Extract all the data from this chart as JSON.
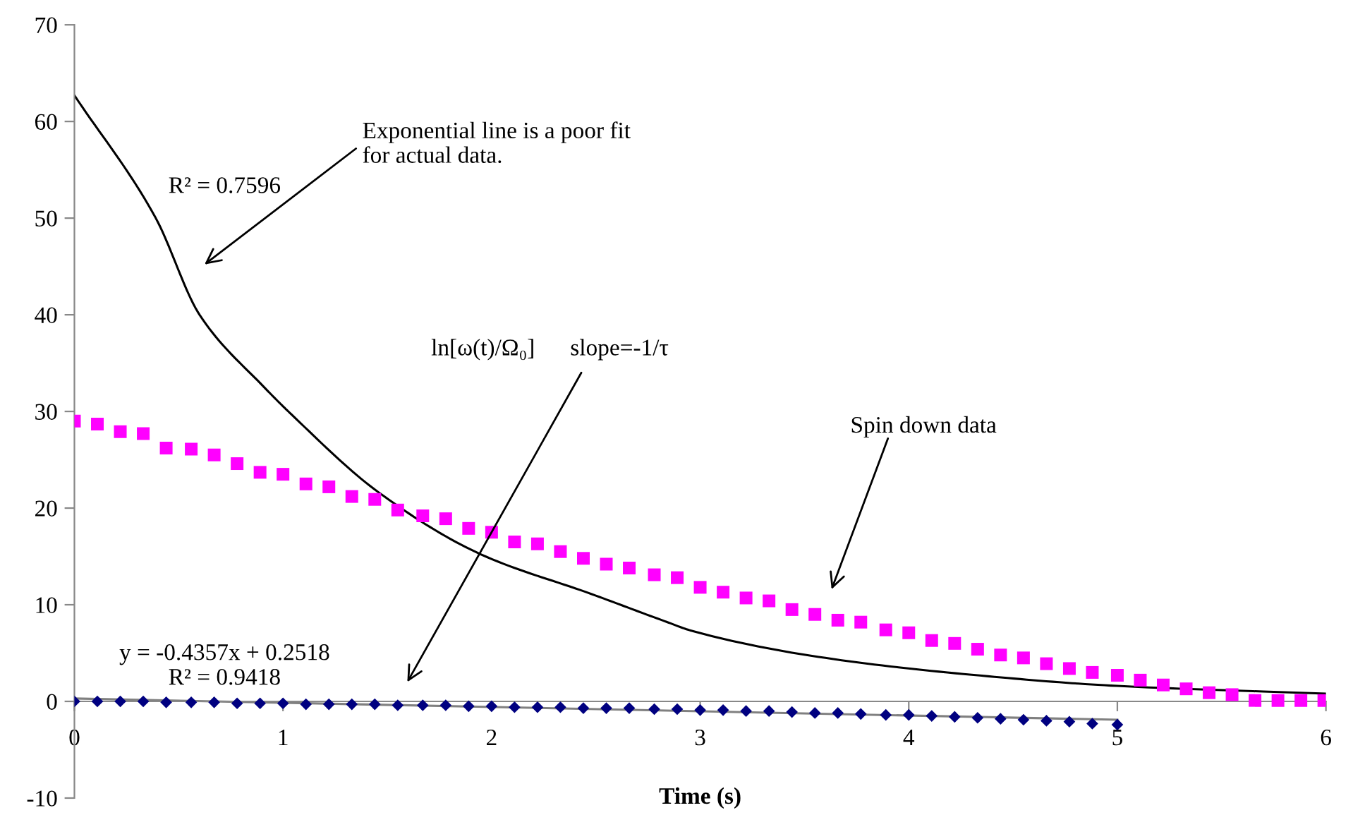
{
  "chart_data": {
    "type": "scatter",
    "xlabel": "Time (s)",
    "xlim": [
      0,
      6
    ],
    "xticks": [
      0,
      1,
      2,
      3,
      4,
      5,
      6
    ],
    "ylim": [
      -10,
      70
    ],
    "yticks": [
      -10,
      0,
      10,
      20,
      30,
      40,
      50,
      60,
      70
    ],
    "grid": false,
    "legend": false,
    "series": [
      {
        "type": "line",
        "color": "#000000",
        "marker": "none",
        "x": [
          0,
          0.39,
          0.6,
          0.91,
          1.04,
          1.46,
          1.95,
          2.48,
          2.83,
          2.96,
          3.6,
          4.38,
          5.0,
          6.0
        ],
        "values": [
          62.7,
          50,
          40,
          32.5,
          29.7,
          21.6,
          15.2,
          11.1,
          8.3,
          7.3,
          4.5,
          2.6,
          1.6,
          0.8
        ]
      },
      {
        "color": "#ff00ff",
        "marker": "square",
        "x": [
          0,
          0.11,
          0.22,
          0.33,
          0.44,
          0.56,
          0.67,
          0.78,
          0.89,
          1.0,
          1.11,
          1.22,
          1.33,
          1.44,
          1.55,
          1.67,
          1.78,
          1.89,
          2.0,
          2.11,
          2.22,
          2.33,
          2.44,
          2.55,
          2.66,
          2.78,
          2.89,
          3.0,
          3.11,
          3.22,
          3.33,
          3.44,
          3.55,
          3.66,
          3.77,
          3.89,
          4.0,
          4.11,
          4.22,
          4.33,
          4.44,
          4.55,
          4.66,
          4.77,
          4.88,
          5.0,
          5.11,
          5.22,
          5.33,
          5.44,
          5.55,
          5.66,
          5.77,
          5.88,
          5.99
        ],
        "values": [
          29.0,
          28.7,
          27.9,
          27.7,
          26.2,
          26.1,
          25.5,
          24.6,
          23.7,
          23.5,
          22.5,
          22.2,
          21.2,
          20.9,
          19.8,
          19.2,
          18.9,
          17.9,
          17.5,
          16.5,
          16.3,
          15.5,
          14.8,
          14.2,
          13.8,
          13.1,
          12.8,
          11.8,
          11.3,
          10.7,
          10.4,
          9.5,
          9.0,
          8.4,
          8.2,
          7.4,
          7.1,
          6.3,
          6.0,
          5.4,
          4.8,
          4.5,
          3.9,
          3.4,
          3.0,
          2.7,
          2.2,
          1.7,
          1.3,
          0.9,
          0.7,
          0.1,
          0.1,
          0.1,
          0.1
        ]
      },
      {
        "type": "line",
        "color": "#808080",
        "marker": "none",
        "x": [
          0,
          5
        ],
        "values": [
          0.3,
          -1.9
        ]
      },
      {
        "color": "#000080",
        "marker": "diamond",
        "x": [
          0,
          0.11,
          0.22,
          0.33,
          0.44,
          0.56,
          0.67,
          0.78,
          0.89,
          1.0,
          1.11,
          1.22,
          1.33,
          1.44,
          1.55,
          1.67,
          1.78,
          1.89,
          2.0,
          2.11,
          2.22,
          2.33,
          2.44,
          2.55,
          2.66,
          2.78,
          2.89,
          3.0,
          3.11,
          3.22,
          3.33,
          3.44,
          3.55,
          3.66,
          3.77,
          3.89,
          4.0,
          4.11,
          4.22,
          4.33,
          4.44,
          4.55,
          4.66,
          4.77,
          4.88,
          5.0
        ],
        "values": [
          0,
          0,
          0,
          0,
          -0.1,
          -0.1,
          -0.1,
          -0.2,
          -0.2,
          -0.2,
          -0.3,
          -0.3,
          -0.3,
          -0.3,
          -0.4,
          -0.4,
          -0.4,
          -0.5,
          -0.5,
          -0.6,
          -0.6,
          -0.6,
          -0.7,
          -0.7,
          -0.7,
          -0.8,
          -0.8,
          -0.9,
          -0.9,
          -1.0,
          -1.0,
          -1.1,
          -1.2,
          -1.2,
          -1.3,
          -1.4,
          -1.4,
          -1.5,
          -1.6,
          -1.7,
          -1.8,
          -1.9,
          -2.0,
          -2.1,
          -2.3,
          -2.4
        ]
      }
    ],
    "annotations": [
      "R² = 0.7596",
      "Exponential line is a poor fit\nfor actual data.",
      "ln[ω(t)/Ω₀]      slope=-1/τ",
      "Spin down data",
      "y = -0.4357x + 0.2518\nR² = 0.9418"
    ]
  }
}
